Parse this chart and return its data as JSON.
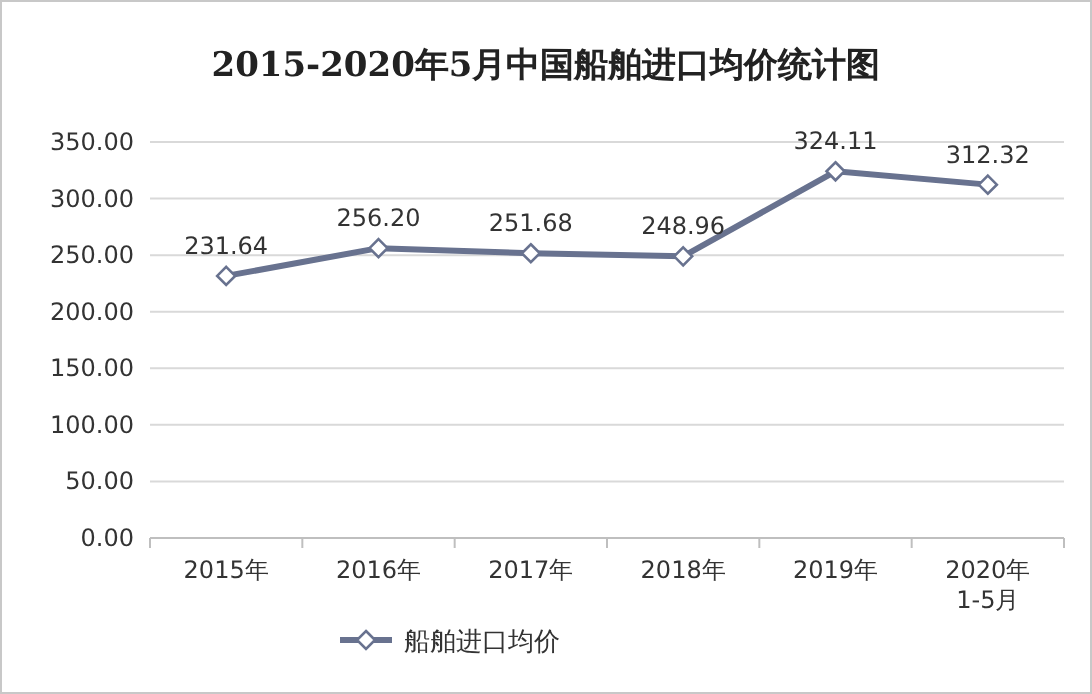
{
  "chart_data": {
    "type": "line",
    "title": "2015-2020年5月中国船舶进口均价统计图",
    "categories": [
      "2015年",
      "2016年",
      "2017年",
      "2018年",
      "2019年",
      "2020年1-5月"
    ],
    "series": [
      {
        "name": "船舶进口均价",
        "color": "#68728f",
        "values": [
          231.64,
          256.2,
          251.68,
          248.96,
          324.11,
          312.32
        ],
        "value_labels": [
          "231.64",
          "256.20",
          "251.68",
          "248.96",
          "324.11",
          "312.32"
        ]
      }
    ],
    "ylim": [
      0,
      350
    ],
    "yticks": [
      {
        "value": 0,
        "label": "0.00"
      },
      {
        "value": 50,
        "label": "50.00"
      },
      {
        "value": 100,
        "label": "100.00"
      },
      {
        "value": 150,
        "label": "150.00"
      },
      {
        "value": 200,
        "label": "200.00"
      },
      {
        "value": 250,
        "label": "250.00"
      },
      {
        "value": 300,
        "label": "300.00"
      },
      {
        "value": 350,
        "label": "350.00"
      }
    ],
    "grid": "y",
    "legend": "bottom",
    "marker": "diamond",
    "line_style": "solid"
  }
}
